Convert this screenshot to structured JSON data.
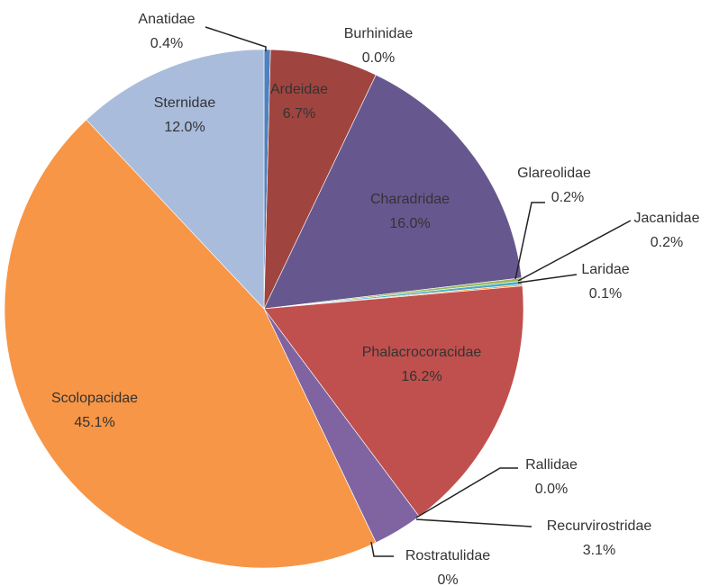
{
  "chart_data": {
    "type": "pie",
    "categories": [
      "Anatidae",
      "Burhinidae",
      "Ardeidae",
      "Charadridae",
      "Glareolidae",
      "Jacanidae",
      "Laridae",
      "Phalacrocoracidae",
      "Rallidae",
      "Recurvirostridae",
      "Rostratulidae",
      "Scolopacidae",
      "Sternidae"
    ],
    "values": [
      0.4,
      0.0,
      6.7,
      16.0,
      0.2,
      0.2,
      0.1,
      16.2,
      0.0,
      3.1,
      0,
      45.1,
      12.0
    ],
    "value_labels": [
      "0.4%",
      "0.0%",
      "6.7%",
      "16.0%",
      "0.2%",
      "0.2%",
      "0.1%",
      "16.2%",
      "0.0%",
      "3.1%",
      "0%",
      "45.1%",
      "12.0%"
    ],
    "colors": [
      "#4f81bd",
      "#7f7f7f",
      "#a0443f",
      "#67578f",
      "#9bbb59",
      "#4bacc6",
      "#f79646",
      "#c0504d",
      "#2c4d75",
      "#8064a2",
      "#4f6228",
      "#f79646",
      "#a9bcdc"
    ]
  }
}
